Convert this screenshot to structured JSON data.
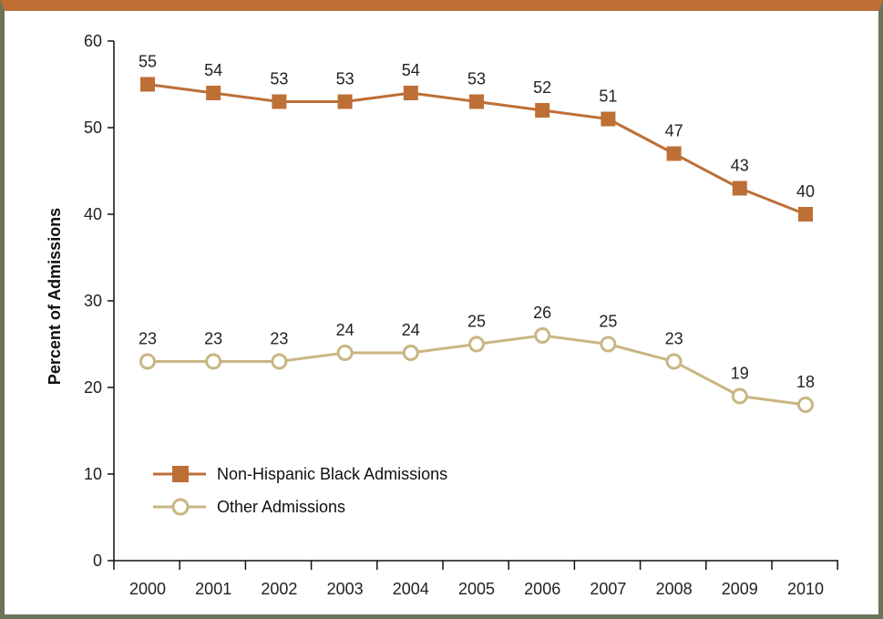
{
  "chart_data": {
    "type": "line",
    "x": [
      "2000",
      "2001",
      "2002",
      "2003",
      "2004",
      "2005",
      "2006",
      "2007",
      "2008",
      "2009",
      "2010"
    ],
    "series": [
      {
        "name": "Non-Hispanic Black Admissions",
        "values": [
          55,
          54,
          53,
          53,
          54,
          53,
          52,
          51,
          47,
          43,
          40
        ],
        "color": "#bd6f36",
        "marker": "square"
      },
      {
        "name": "Other Admissions",
        "values": [
          23,
          23,
          23,
          24,
          24,
          25,
          26,
          25,
          23,
          19,
          18
        ],
        "color": "#c9b683",
        "marker": "open-circle"
      }
    ],
    "title": "",
    "xlabel": "",
    "ylabel": "Percent of Admissions",
    "ylim": [
      0,
      60
    ],
    "yticks": [
      0,
      10,
      20,
      30,
      40,
      50,
      60
    ],
    "grid": false,
    "legend_position": "lower-left"
  }
}
